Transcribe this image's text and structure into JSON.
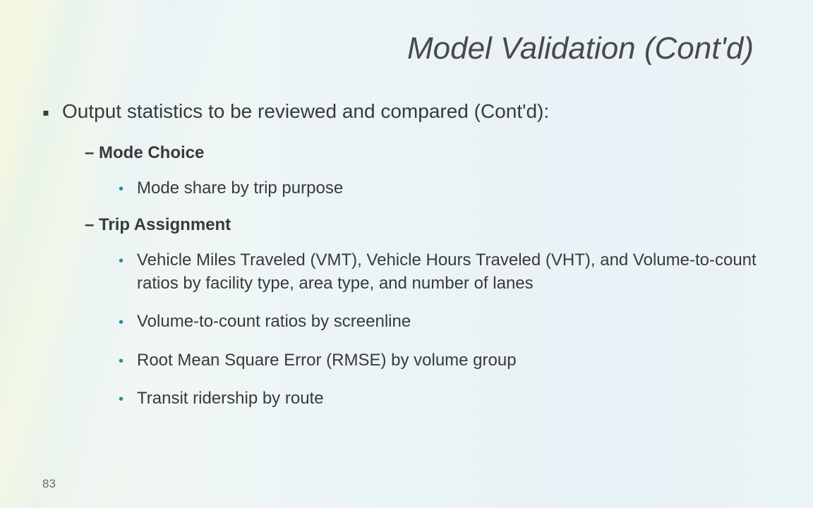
{
  "slide": {
    "title": "Model Validation (Cont'd)",
    "page_number": "83",
    "bullet_main": "Output statistics to be reviewed and compared (Cont'd):",
    "section1": {
      "heading": "– Mode Choice",
      "items": [
        "Mode share by trip purpose"
      ]
    },
    "section2": {
      "heading": "– Trip Assignment",
      "items": [
        "Vehicle Miles Traveled (VMT), Vehicle Hours Traveled (VHT), and Volume-to-count ratios by facility type, area type, and number of lanes",
        "Volume-to-count ratios by screenline",
        "Root Mean Square Error (RMSE) by volume group",
        "Transit ridership by route"
      ]
    }
  },
  "style": {
    "title_color": "#4a4a4a",
    "text_color": "#3a3a3a",
    "sub_bullet_color": "#2a8aa6",
    "title_fontsize": 44,
    "body_fontsize": 28,
    "sub_fontsize": 24,
    "background_gradient": [
      "#f5f7ec",
      "#eef6f6",
      "#eaf3f6"
    ]
  }
}
